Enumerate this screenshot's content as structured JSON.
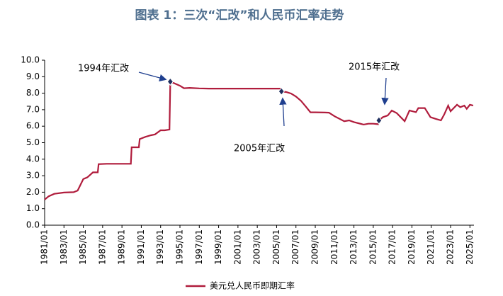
{
  "chart_data": {
    "type": "line",
    "title": "图表 1：三次“汇改”和人民币汇率走势",
    "x": [
      "1981/01",
      "1981/06",
      "1982/01",
      "1983/01",
      "1984/01",
      "1984/06",
      "1985/01",
      "1985/06",
      "1986/01",
      "1986/07",
      "1986/08",
      "1987/06",
      "1988/06",
      "1989/01",
      "1989/12",
      "1990/01",
      "1990/10",
      "1990/11",
      "1991/06",
      "1992/01",
      "1992/06",
      "1993/01",
      "1993/06",
      "1993/12",
      "1994/01",
      "1994/06",
      "1995/01",
      "1995/06",
      "1996/01",
      "1997/01",
      "1998/01",
      "1999/01",
      "2000/01",
      "2001/01",
      "2002/01",
      "2003/01",
      "2004/01",
      "2005/06",
      "2005/07",
      "2006/01",
      "2006/07",
      "2007/01",
      "2007/07",
      "2008/01",
      "2008/07",
      "2009/01",
      "2010/01",
      "2010/06",
      "2011/01",
      "2012/01",
      "2012/07",
      "2013/01",
      "2014/01",
      "2014/07",
      "2015/01",
      "2015/07",
      "2015/08",
      "2016/01",
      "2016/07",
      "2016/12",
      "2017/06",
      "2018/01",
      "2018/04",
      "2018/10",
      "2019/06",
      "2019/09",
      "2020/05",
      "2020/12",
      "2021/06",
      "2022/01",
      "2022/05",
      "2022/10",
      "2023/01",
      "2023/09",
      "2024/01",
      "2024/06",
      "2024/09",
      "2025/01",
      "2025/05"
    ],
    "series": [
      {
        "name": "美元兑人民币即期汇率",
        "color": "#b01c3c",
        "values": [
          1.55,
          1.75,
          1.9,
          1.98,
          2.0,
          2.1,
          2.8,
          2.9,
          3.2,
          3.2,
          3.7,
          3.72,
          3.72,
          3.72,
          3.72,
          4.72,
          4.72,
          5.22,
          5.35,
          5.45,
          5.5,
          5.75,
          5.75,
          5.8,
          8.7,
          8.6,
          8.45,
          8.3,
          8.32,
          8.29,
          8.28,
          8.28,
          8.28,
          8.28,
          8.28,
          8.28,
          8.28,
          8.28,
          8.11,
          8.07,
          7.98,
          7.8,
          7.55,
          7.2,
          6.84,
          6.84,
          6.83,
          6.82,
          6.6,
          6.3,
          6.35,
          6.25,
          6.1,
          6.15,
          6.15,
          6.12,
          6.35,
          6.55,
          6.65,
          6.95,
          6.8,
          6.45,
          6.3,
          6.95,
          6.85,
          7.1,
          7.1,
          6.55,
          6.45,
          6.35,
          6.7,
          7.25,
          6.9,
          7.3,
          7.15,
          7.25,
          7.05,
          7.3,
          7.25
        ]
      }
    ],
    "annotations": [
      {
        "text": "1994年汇改",
        "x": "1994/01",
        "y": 8.7
      },
      {
        "text": "2005年汇改",
        "x": "2005/07",
        "y": 8.11
      },
      {
        "text": "2015年汇改",
        "x": "2015/08",
        "y": 6.35
      }
    ],
    "xlim": [
      "1981/01",
      "2025/06"
    ],
    "xticks": [
      "1981/01",
      "1983/01",
      "1985/01",
      "1987/01",
      "1989/01",
      "1991/01",
      "1993/01",
      "1995/01",
      "1997/01",
      "1999/01",
      "2001/01",
      "2003/01",
      "2005/01",
      "2007/01",
      "2009/01",
      "2011/01",
      "2013/01",
      "2015/01",
      "2017/01",
      "2019/01",
      "2021/01",
      "2023/01",
      "2025/01"
    ],
    "ylim": [
      0,
      10
    ],
    "yticks": [
      {
        "value": 0,
        "label": "0.0"
      },
      {
        "value": 1,
        "label": "1.0"
      },
      {
        "value": 2,
        "label": "2.0"
      },
      {
        "value": 3,
        "label": "3.0"
      },
      {
        "value": 4,
        "label": "4.0"
      },
      {
        "value": 5,
        "label": "5.0"
      },
      {
        "value": 6,
        "label": "6.0"
      },
      {
        "value": 7,
        "label": "7.0"
      },
      {
        "value": 8,
        "label": "8.0"
      },
      {
        "value": 9,
        "label": "9.0"
      },
      {
        "value": 10,
        "label": "10.0"
      }
    ],
    "grid": false,
    "legend": "bottom"
  }
}
